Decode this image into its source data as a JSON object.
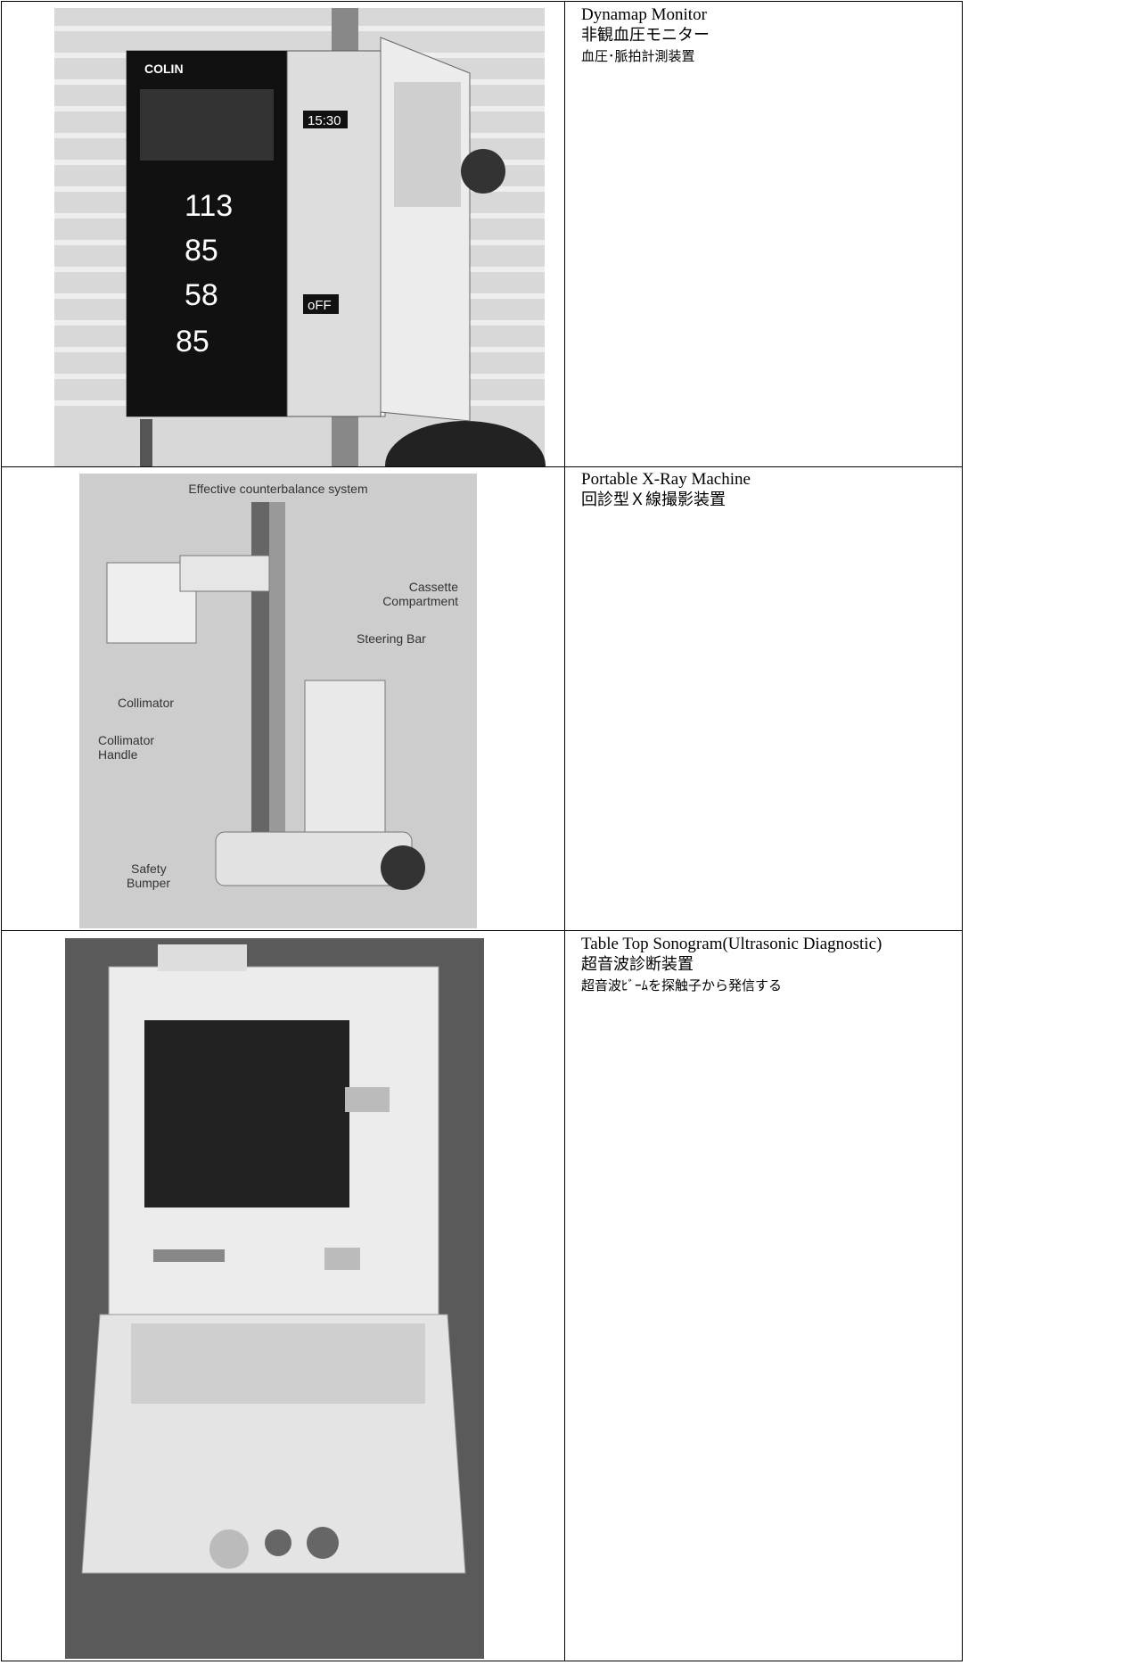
{
  "table": {
    "rows": [
      {
        "name": "Dynamap Monitor",
        "lines": [
          "非観血圧モニター",
          "血圧･脈拍計測装置"
        ],
        "photo": {
          "brand": "COLIN",
          "displays": [
            "15:30",
            "113",
            "85",
            "58",
            "85",
            "oFF"
          ]
        }
      },
      {
        "name": "Portable X-Ray Machine",
        "lines": [
          "回診型Ｘ線撮影装置"
        ],
        "photo": {
          "caption": "Effective counterbalance system",
          "labels": [
            [
              "Cassette",
              "Compartment"
            ],
            [
              "Steering Bar"
            ],
            [
              "Collimator"
            ],
            [
              "Collimator",
              "Handle"
            ],
            [
              "Safety",
              "Bumper"
            ]
          ]
        }
      },
      {
        "name": "Table Top Sonogram(Ultrasonic Diagnostic)",
        "lines": [
          "超音波診断装置",
          "超音波ﾋﾞｰﾑを探触子から発信する"
        ]
      }
    ]
  }
}
